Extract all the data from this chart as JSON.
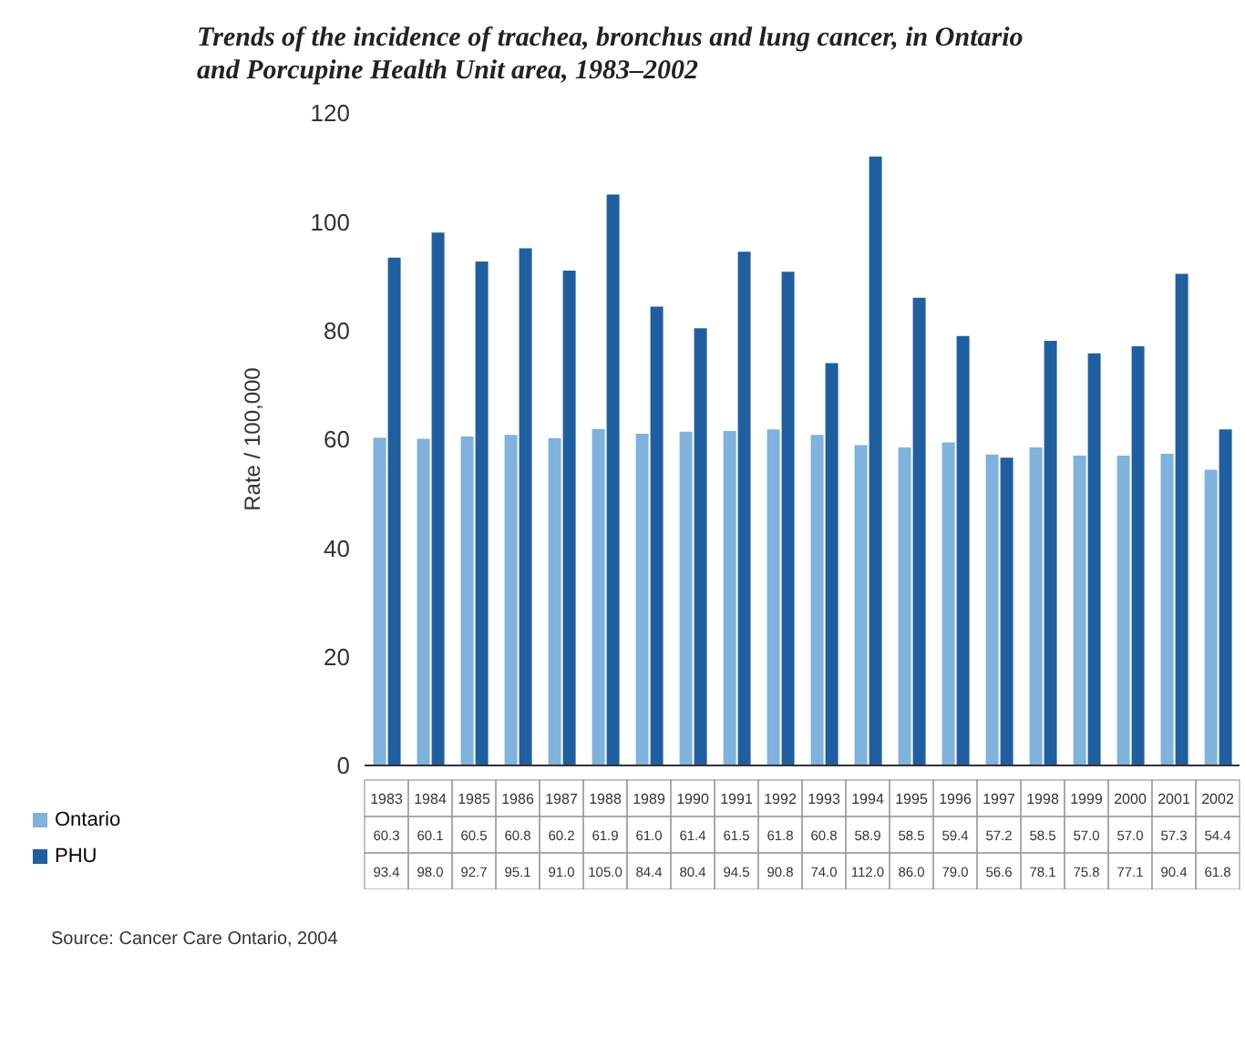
{
  "chart_data": {
    "type": "bar",
    "title": "Trends of the incidence of trachea, bronchus and lung cancer, in Ontario and Porcupine Health Unit area, 1983–2002",
    "ylabel": "Rate / 100,000",
    "categories": [
      "1983",
      "1984",
      "1985",
      "1986",
      "1987",
      "1988",
      "1989",
      "1990",
      "1991",
      "1992",
      "1993",
      "1994",
      "1995",
      "1996",
      "1997",
      "1998",
      "1999",
      "2000",
      "2001",
      "2002"
    ],
    "series": [
      {
        "name": "Ontario",
        "color": "#7fb2dc",
        "values": [
          60.3,
          60.1,
          60.5,
          60.8,
          60.2,
          61.9,
          61.0,
          61.4,
          61.5,
          61.8,
          60.8,
          58.9,
          58.5,
          59.4,
          57.2,
          58.5,
          57.0,
          57.0,
          57.3,
          54.4
        ],
        "value_labels": [
          "60.3",
          "60.1",
          "60.5",
          "60.8",
          "60.2",
          "61.9",
          "61.0",
          "61.4",
          "61.5",
          "61.8",
          "60.8",
          "58.9",
          "58.5",
          "59.4",
          "57.2",
          "58.5",
          "57.0",
          "57.0",
          "57.3",
          "54.4"
        ]
      },
      {
        "name": "PHU",
        "color": "#1f5fa0",
        "values": [
          93.4,
          98.0,
          92.7,
          95.1,
          91.0,
          105.0,
          84.4,
          80.4,
          94.5,
          90.8,
          74.0,
          112.0,
          86.0,
          79.0,
          56.6,
          78.1,
          75.8,
          77.1,
          90.4,
          61.8
        ],
        "value_labels": [
          "93.4",
          "98.0",
          "92.7",
          "95.1",
          "91.0",
          "105.0",
          "84.4",
          "80.4",
          "94.5",
          "90.8",
          "74.0",
          "112.0",
          "86.0",
          "79.0",
          "56.6",
          "78.1",
          "75.8",
          "77.1",
          "90.4",
          "61.8"
        ]
      }
    ],
    "ylim": [
      0,
      120
    ],
    "yticks": [
      0,
      20,
      40,
      60,
      80,
      100,
      120
    ],
    "grid": false,
    "legend": "bottom left",
    "annotations": [
      "Source: Cancer Care Ontario, 2004"
    ]
  }
}
